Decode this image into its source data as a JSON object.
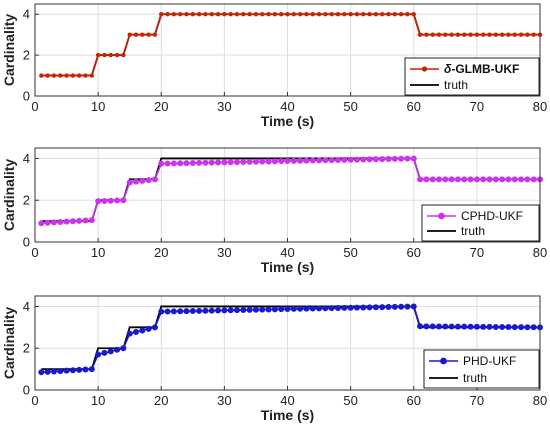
{
  "chart_data": [
    {
      "type": "line",
      "xlabel": "Time (s)",
      "ylabel": "Cardinality",
      "xlim": [
        0,
        80
      ],
      "ylim": [
        0,
        4.5
      ],
      "xticks": [
        "0",
        "10",
        "20",
        "30",
        "40",
        "50",
        "60",
        "70",
        "80"
      ],
      "yticks": [
        "0",
        "2",
        "4"
      ],
      "grid": true,
      "legend_position": "bottom-right",
      "truth": {
        "name": "truth",
        "color": "#000000",
        "x": [
          1,
          9,
          10,
          14,
          15,
          19,
          20,
          60,
          61,
          80
        ],
        "y": [
          1,
          1,
          2,
          2,
          3,
          3,
          4,
          4,
          3,
          3
        ]
      },
      "estimate": {
        "name_prefix": "δ",
        "name": "-GLMB-UKF",
        "color": "#cc2200",
        "marker": "dot-small",
        "x": [
          1,
          9,
          10,
          14,
          15,
          19,
          20,
          60,
          61,
          80
        ],
        "y": [
          1,
          1,
          2,
          2,
          3,
          3,
          4,
          4,
          3,
          3
        ]
      }
    },
    {
      "type": "line",
      "xlabel": "Time (s)",
      "ylabel": "Cardinality",
      "xlim": [
        0,
        80
      ],
      "ylim": [
        0,
        4.5
      ],
      "xticks": [
        "0",
        "10",
        "20",
        "30",
        "40",
        "50",
        "60",
        "70",
        "80"
      ],
      "yticks": [
        "0",
        "2",
        "4"
      ],
      "grid": true,
      "legend_position": "bottom-right",
      "truth": {
        "name": "truth",
        "color": "#000000",
        "x": [
          1,
          9,
          10,
          14,
          15,
          19,
          20,
          60,
          61,
          80
        ],
        "y": [
          1,
          1,
          2,
          2,
          3,
          3,
          4,
          4,
          3,
          3
        ]
      },
      "estimate": {
        "name": "CPHD-UKF",
        "color": "#cc33ee",
        "marker": "dot",
        "x": [
          1,
          9,
          10,
          14,
          15,
          19,
          20,
          60,
          61,
          80
        ],
        "y": [
          0.9,
          1.05,
          1.95,
          2.0,
          2.85,
          3.0,
          3.75,
          4.0,
          3.0,
          3.0
        ]
      }
    },
    {
      "type": "line",
      "xlabel": "Time (s)",
      "ylabel": "Cardinality",
      "xlim": [
        0,
        80
      ],
      "ylim": [
        0,
        4.5
      ],
      "xticks": [
        "0",
        "10",
        "20",
        "30",
        "40",
        "50",
        "60",
        "70",
        "80"
      ],
      "yticks": [
        "0",
        "2",
        "4"
      ],
      "grid": true,
      "legend_position": "bottom-right",
      "truth": {
        "name": "truth",
        "color": "#000000",
        "x": [
          1,
          9,
          10,
          14,
          15,
          19,
          20,
          60,
          61,
          80
        ],
        "y": [
          1,
          1,
          2,
          2,
          3,
          3,
          4,
          4,
          3,
          3
        ]
      },
      "estimate": {
        "name": "PHD-UKF",
        "color": "#1a1acc",
        "marker": "dot",
        "x": [
          1,
          9,
          10,
          14,
          15,
          19,
          20,
          60,
          61,
          80
        ],
        "y": [
          0.85,
          1.0,
          1.7,
          2.0,
          2.7,
          3.0,
          3.75,
          4.0,
          3.05,
          3.0
        ]
      }
    }
  ]
}
